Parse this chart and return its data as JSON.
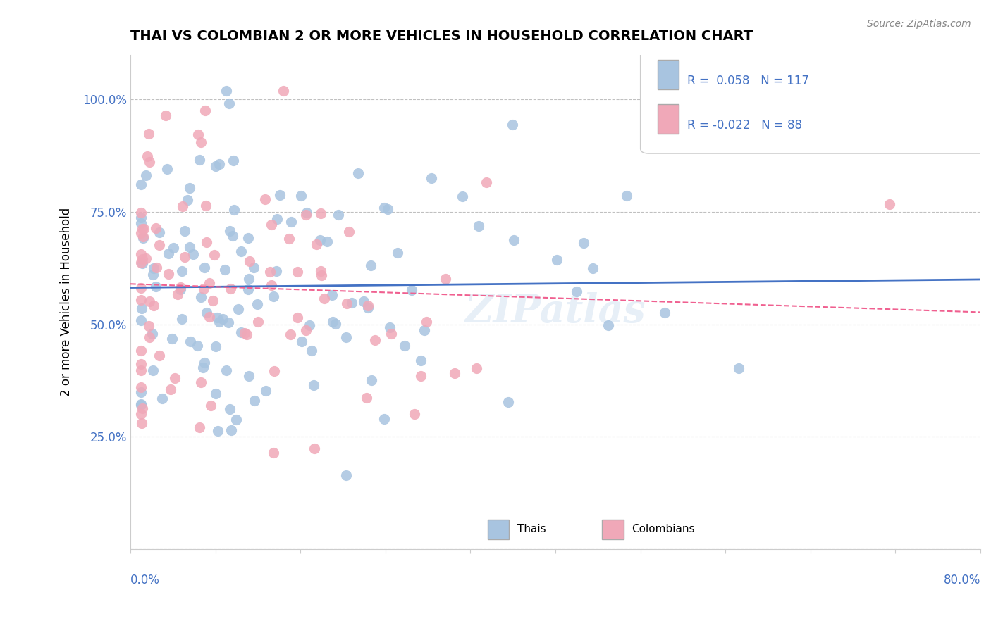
{
  "title": "THAI VS COLOMBIAN 2 OR MORE VEHICLES IN HOUSEHOLD CORRELATION CHART",
  "source": "Source: ZipAtlas.com",
  "ylabel": "2 or more Vehicles in Household",
  "xlim": [
    0.0,
    0.8
  ],
  "ylim": [
    0.0,
    1.1
  ],
  "thai_R": 0.058,
  "thai_N": 117,
  "colombian_R": -0.022,
  "colombian_N": 88,
  "thai_color": "#a8c4e0",
  "colombian_color": "#f0a8b8",
  "thai_line_color": "#4472c4",
  "colombian_line_color": "#f06090",
  "watermark": "ZIPatlas",
  "legend_label_thai": "Thais",
  "legend_label_colombian": "Colombians"
}
